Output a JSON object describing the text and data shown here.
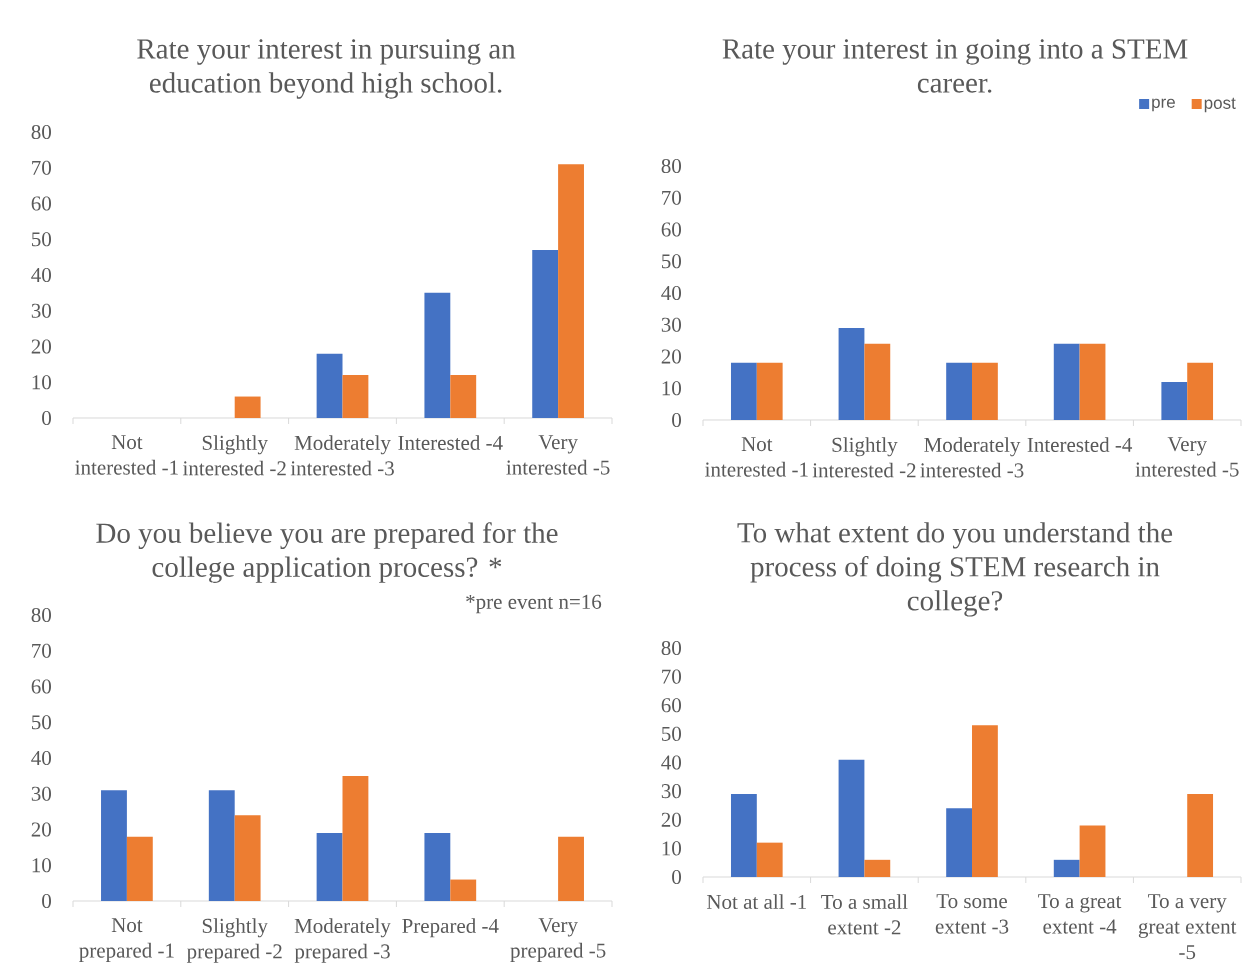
{
  "chart_data": [
    {
      "type": "bar",
      "title": "Rate your interest in pursuing an education beyond high school.",
      "categories": [
        "Not interested -1",
        "Slightly interested -2",
        "Moderately interested -3",
        "Interested -4",
        "Very interested -5"
      ],
      "series": [
        {
          "color": "#4472c4",
          "values": [
            0,
            0,
            18,
            35,
            47
          ]
        },
        {
          "color": "#ed7d31",
          "values": [
            0,
            6,
            12,
            12,
            71
          ]
        }
      ],
      "ylim": [
        0,
        80
      ],
      "yticks": [
        0,
        10,
        20,
        30,
        40,
        50,
        60,
        70,
        80
      ]
    },
    {
      "type": "bar",
      "title": "Rate your interest in going into a STEM career.",
      "categories": [
        "Not interested -1",
        "Slightly interested -2",
        "Moderately interested -3",
        "Interested -4",
        "Very interested -5"
      ],
      "series": [
        {
          "name": "pre",
          "color": "#4472c4",
          "values": [
            18,
            29,
            18,
            24,
            12
          ]
        },
        {
          "name": "post",
          "color": "#ed7d31",
          "values": [
            18,
            24,
            18,
            24,
            18
          ]
        }
      ],
      "ylim": [
        0,
        80
      ],
      "yticks": [
        0,
        10,
        20,
        30,
        40,
        50,
        60,
        70,
        80
      ],
      "legend": "top right"
    },
    {
      "type": "bar",
      "title": "Do you believe you are prepared for the college application process? *",
      "annotations": [
        "*pre event n=16"
      ],
      "categories": [
        "Not prepared -1",
        "Slightly prepared -2",
        "Moderately prepared -3",
        "Prepared -4",
        "Very prepared -5"
      ],
      "series": [
        {
          "color": "#4472c4",
          "values": [
            31,
            31,
            19,
            19,
            0
          ]
        },
        {
          "color": "#ed7d31",
          "values": [
            18,
            24,
            35,
            6,
            18
          ]
        }
      ],
      "ylim": [
        0,
        80
      ],
      "yticks": [
        0,
        10,
        20,
        30,
        40,
        50,
        60,
        70,
        80
      ]
    },
    {
      "type": "bar",
      "title": "To what extent do you understand the process of doing STEM research in college?",
      "categories": [
        "Not at all -1",
        "To a small extent -2",
        "To some extent -3",
        "To a great extent -4",
        "To a very great extent -5"
      ],
      "series": [
        {
          "color": "#4472c4",
          "values": [
            29,
            41,
            24,
            6,
            0
          ]
        },
        {
          "color": "#ed7d31",
          "values": [
            12,
            6,
            53,
            18,
            29
          ]
        }
      ],
      "ylim": [
        0,
        80
      ],
      "yticks": [
        0,
        10,
        20,
        30,
        40,
        50,
        60,
        70,
        80
      ]
    }
  ]
}
